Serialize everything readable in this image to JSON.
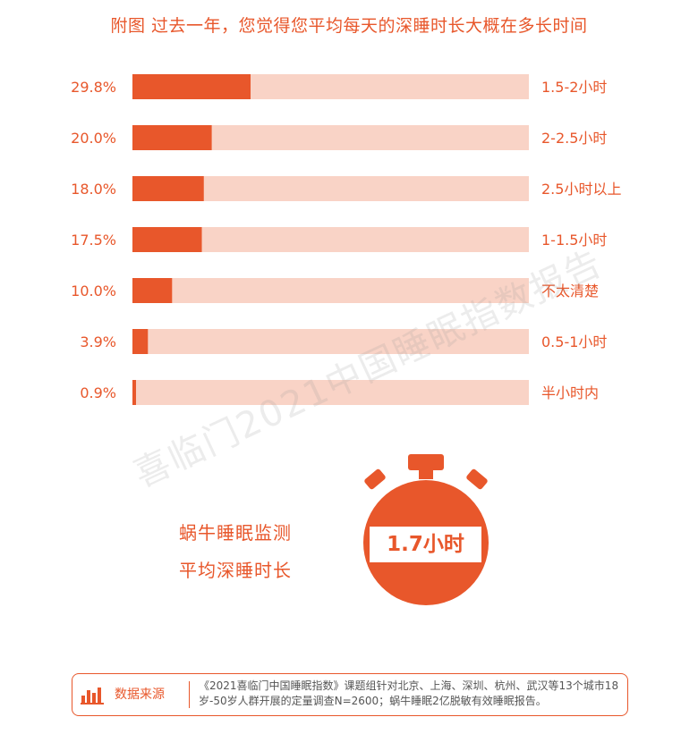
{
  "title": "附图  过去一年，您觉得您平均每天的深睡时长大概在多长时间",
  "chart_data": {
    "type": "bar",
    "orientation": "horizontal",
    "categories": [
      "1.5-2小时",
      "2-2.5小时",
      "2.5小时以上",
      "1-1.5小时",
      "不太清楚",
      "0.5-1小时",
      "半小时内"
    ],
    "values": [
      29.8,
      20.0,
      18.0,
      17.5,
      10.0,
      3.9,
      0.9
    ],
    "value_labels": [
      "29.8%",
      "20.0%",
      "18.0%",
      "17.5%",
      "10.0%",
      "3.9%",
      "0.9%"
    ],
    "unit": "%",
    "xlim": [
      0,
      100
    ],
    "bar_color": "#e8572b",
    "track_color": "#f9d3c6"
  },
  "watermark": "喜临门2021中国睡眠指数报告",
  "side_labels": [
    "蜗牛睡眠监测",
    "平均深睡时长"
  ],
  "timer_value": "1.7小时",
  "source": {
    "label": "数据来源",
    "text": "《2021喜临门中国睡眠指数》课题组针对北京、上海、深圳、杭州、武汉等13个城市18岁-50岁人群开展的定量调查N=2600；蜗牛睡眠2亿脱敏有效睡眠报告。",
    "icon": "bar-chart-icon"
  }
}
